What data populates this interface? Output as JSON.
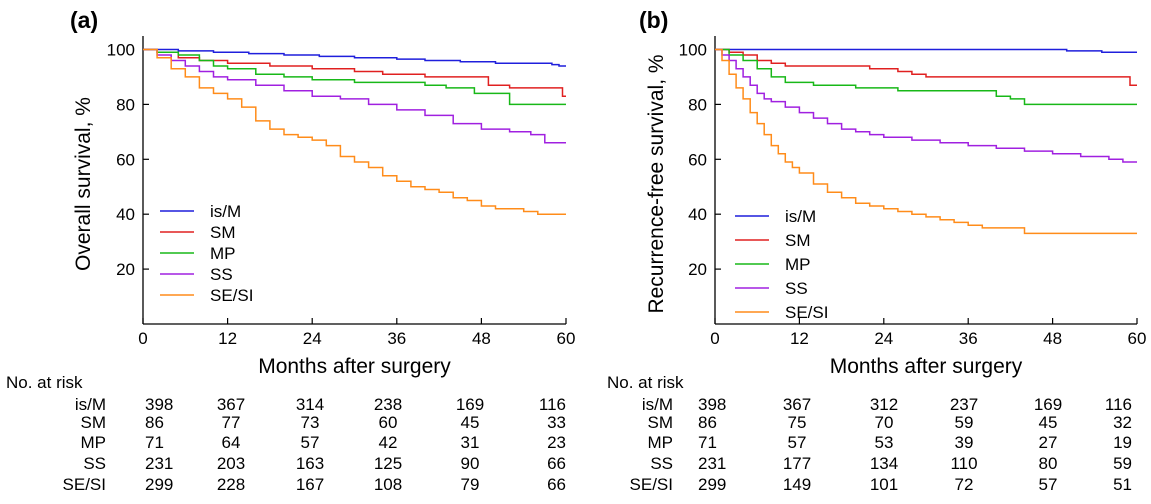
{
  "shared": {
    "xlabel": "Months after surgery",
    "risk_title": "No. at risk",
    "xticks": [
      0,
      12,
      24,
      36,
      48,
      60
    ],
    "yticks": [
      20,
      40,
      60,
      80,
      100
    ],
    "series_colors": {
      "is/M": "#1f1fdc",
      "SM": "#e02020",
      "MP": "#18b818",
      "SS": "#a020e0",
      "SE/SI": "#ff8c1a"
    }
  },
  "chart_data": [
    {
      "type": "line",
      "panel_label": "(a)",
      "title": "",
      "xlabel": "Months after surgery",
      "ylabel": "Overall survival, %",
      "xlim": [
        0,
        60
      ],
      "ylim": [
        0,
        102
      ],
      "grid": false,
      "legend_position": "bottom-left",
      "series": [
        {
          "name": "is/M",
          "x": [
            0,
            2,
            5,
            10,
            15,
            20,
            25,
            30,
            36,
            40,
            45,
            50,
            55,
            58,
            59,
            60
          ],
          "y": [
            100,
            100,
            99.5,
            99,
            98.5,
            98,
            97.5,
            97,
            96.5,
            96,
            95.5,
            95,
            95,
            94.5,
            94,
            94
          ]
        },
        {
          "name": "SM",
          "x": [
            0,
            2,
            5,
            8,
            12,
            18,
            24,
            30,
            34,
            40,
            45,
            49,
            52,
            55,
            58,
            59.5,
            60
          ],
          "y": [
            100,
            99,
            97,
            96,
            95,
            94,
            93,
            92,
            91,
            90,
            90,
            87,
            86,
            86,
            86,
            83,
            83
          ]
        },
        {
          "name": "MP",
          "x": [
            0,
            2,
            5,
            8,
            10,
            12,
            16,
            20,
            24,
            30,
            36,
            40,
            43,
            47,
            52,
            58,
            60
          ],
          "y": [
            100,
            99,
            98,
            96,
            94,
            93,
            91,
            90,
            89,
            88,
            88,
            87,
            86,
            84,
            80,
            80,
            80
          ]
        },
        {
          "name": "SS",
          "x": [
            0,
            2,
            4,
            6,
            8,
            10,
            12,
            16,
            20,
            24,
            28,
            32,
            36,
            40,
            44,
            48,
            52,
            55,
            57,
            60
          ],
          "y": [
            100,
            98,
            96,
            94,
            92,
            90,
            89,
            87,
            85,
            83,
            82,
            80,
            78,
            76,
            73,
            71,
            70,
            69,
            66,
            66
          ]
        },
        {
          "name": "SE/SI",
          "x": [
            0,
            2,
            4,
            6,
            8,
            10,
            12,
            14,
            16,
            18,
            20,
            22,
            24,
            26,
            28,
            30,
            32,
            34,
            36,
            38,
            40,
            42,
            44,
            46,
            48,
            50,
            52,
            54,
            56,
            58,
            60
          ],
          "y": [
            100,
            97,
            93,
            90,
            86,
            84,
            82,
            79,
            74,
            71,
            69,
            68,
            67,
            65,
            61,
            59,
            57,
            54,
            52,
            50,
            49,
            48,
            46,
            45,
            43,
            42,
            42,
            41,
            40,
            40,
            40
          ]
        }
      ],
      "risk_table": {
        "rows": [
          {
            "name": "is/M",
            "values": [
              "398",
              "367",
              "314",
              "238",
              "169",
              "116"
            ]
          },
          {
            "name": "SM",
            "values": [
              "86",
              "77",
              "73",
              "60",
              "45",
              "33"
            ]
          },
          {
            "name": "MP",
            "values": [
              "71",
              "64",
              "57",
              "42",
              "31",
              "23"
            ]
          },
          {
            "name": "SS",
            "values": [
              "231",
              "203",
              "163",
              "125",
              "90",
              "66"
            ]
          },
          {
            "name": "SE/SI",
            "values": [
              "299",
              "228",
              "167",
              "108",
              "79",
              "66"
            ]
          }
        ]
      }
    },
    {
      "type": "line",
      "panel_label": "(b)",
      "title": "",
      "xlabel": "Months after surgery",
      "ylabel": "Recurrence-free survival, %",
      "xlim": [
        0,
        60
      ],
      "ylim": [
        0,
        102
      ],
      "grid": false,
      "legend_position": "bottom-left",
      "series": [
        {
          "name": "is/M",
          "x": [
            0,
            10,
            20,
            30,
            40,
            50,
            55,
            60
          ],
          "y": [
            100,
            100,
            100,
            100,
            100,
            99.5,
            99,
            99
          ]
        },
        {
          "name": "SM",
          "x": [
            0,
            2,
            4,
            6,
            8,
            10,
            16,
            22,
            26,
            28,
            30,
            36,
            44,
            50,
            55,
            58,
            59,
            60
          ],
          "y": [
            100,
            99,
            98,
            96,
            95,
            94,
            94,
            93,
            92,
            91,
            90,
            90,
            90,
            90,
            90,
            90,
            87,
            87
          ]
        },
        {
          "name": "MP",
          "x": [
            0,
            2,
            4,
            6,
            8,
            10,
            14,
            20,
            26,
            32,
            38,
            40,
            42,
            44,
            50,
            55,
            60
          ],
          "y": [
            100,
            98,
            96,
            93,
            90,
            88,
            87,
            86,
            85,
            85,
            85,
            83,
            82,
            80,
            80,
            80,
            80
          ]
        },
        {
          "name": "SS",
          "x": [
            0,
            1,
            2,
            3,
            4,
            5,
            6,
            7,
            8,
            10,
            12,
            14,
            16,
            18,
            20,
            22,
            24,
            28,
            32,
            36,
            40,
            44,
            48,
            52,
            56,
            58,
            60
          ],
          "y": [
            100,
            98,
            96,
            93,
            90,
            87,
            84,
            82,
            81,
            79,
            77,
            75,
            73,
            71,
            70,
            69,
            68,
            67,
            66,
            65,
            64,
            63,
            62,
            61,
            60,
            59,
            59
          ]
        },
        {
          "name": "SE/SI",
          "x": [
            0,
            1,
            2,
            3,
            4,
            5,
            6,
            7,
            8,
            9,
            10,
            11,
            12,
            14,
            16,
            18,
            20,
            22,
            24,
            26,
            28,
            30,
            32,
            34,
            36,
            38,
            40,
            44,
            48,
            52,
            56,
            60
          ],
          "y": [
            100,
            96,
            91,
            86,
            82,
            77,
            73,
            69,
            65,
            62,
            59,
            57,
            55,
            51,
            48,
            46,
            44,
            43,
            42,
            41,
            40,
            39,
            38,
            37,
            36,
            35,
            35,
            33,
            33,
            33,
            33,
            33
          ]
        }
      ],
      "risk_table": {
        "rows": [
          {
            "name": "is/M",
            "values": [
              "398",
              "367",
              "312",
              "237",
              "169",
              "116"
            ]
          },
          {
            "name": "SM",
            "values": [
              "86",
              "75",
              "70",
              "59",
              "45",
              "32"
            ]
          },
          {
            "name": "MP",
            "values": [
              "71",
              "57",
              "53",
              "39",
              "27",
              "19"
            ]
          },
          {
            "name": "SS",
            "values": [
              "231",
              "177",
              "134",
              "110",
              "80",
              "59"
            ]
          },
          {
            "name": "SE/SI",
            "values": [
              "299",
              "149",
              "101",
              "72",
              "57",
              "51"
            ]
          }
        ]
      }
    }
  ]
}
